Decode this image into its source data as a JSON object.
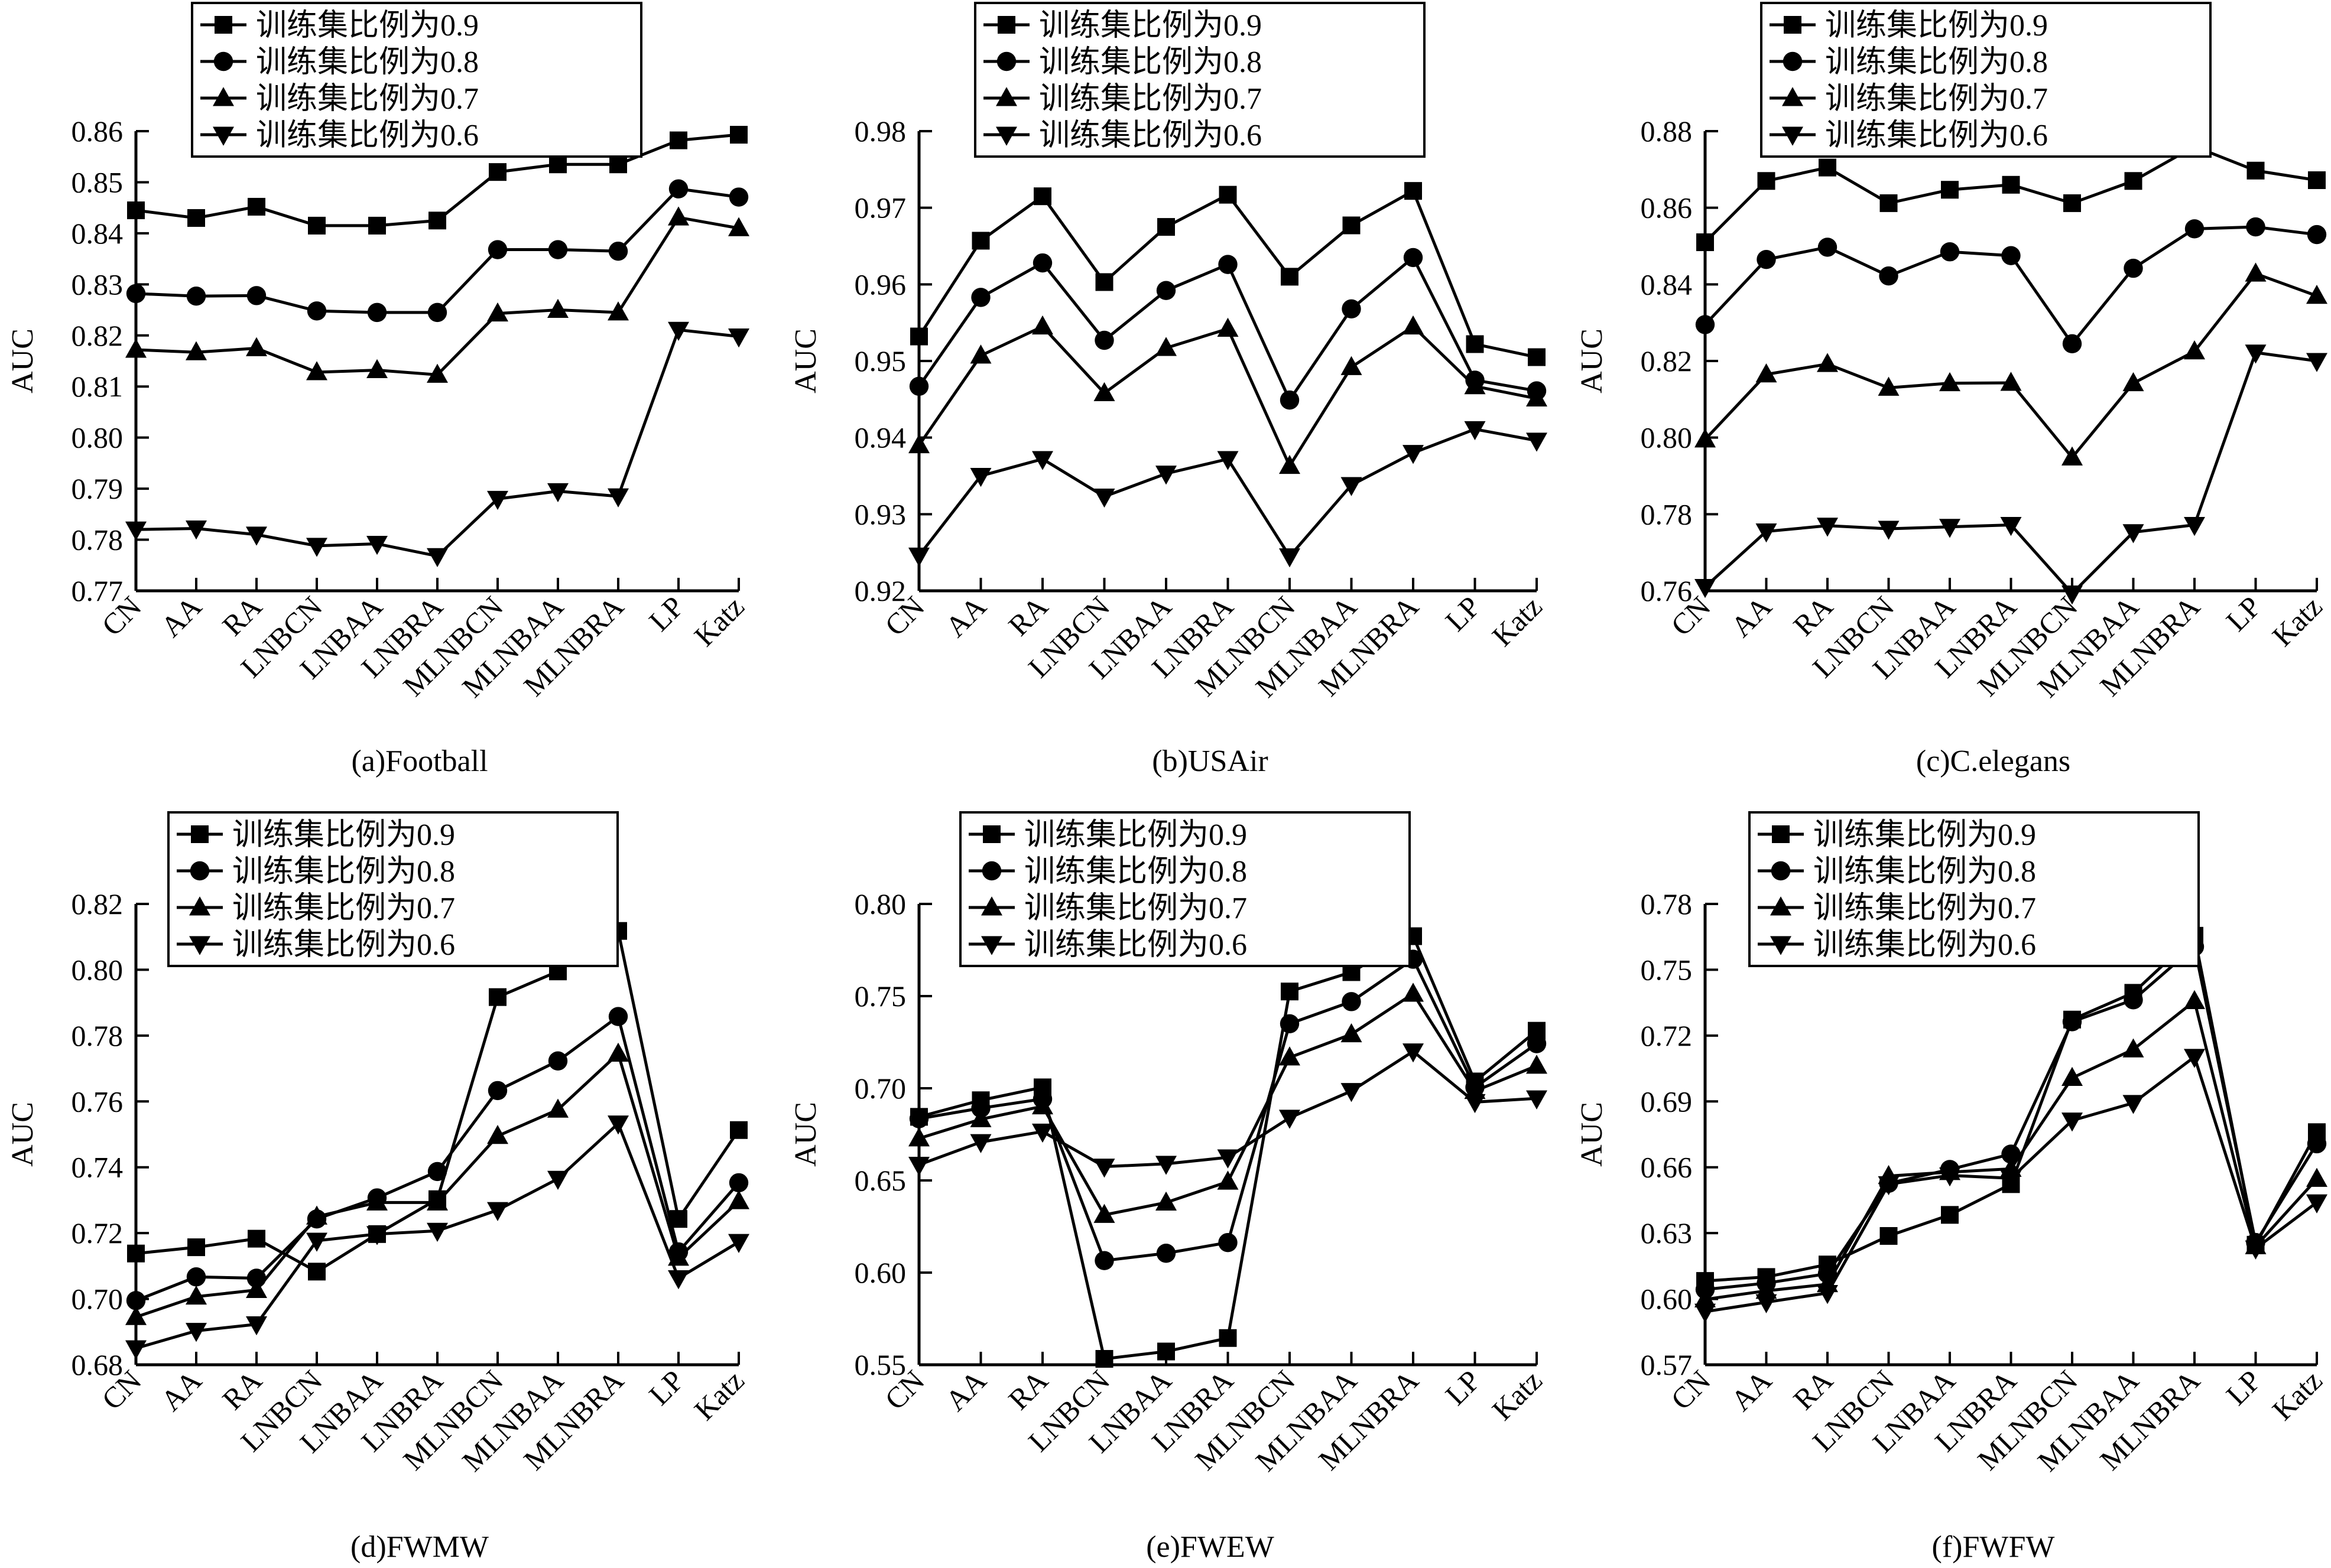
{
  "legend_labels": [
    "训练集比例为0.9",
    "训练集比例为0.8",
    "训练集比例为0.7",
    "训练集比例为0.6"
  ],
  "marker_shapes": [
    "square",
    "circle",
    "triangle-up",
    "triangle-down"
  ],
  "chart_data": [
    {
      "type": "line",
      "caption": "(a)Football",
      "ylabel": "AUC",
      "categories": [
        "CN",
        "AA",
        "RA",
        "LNBCN",
        "LNBAA",
        "LNBRA",
        "MLNBCN",
        "MLNBAA",
        "MLNBRA",
        "LP",
        "Katz"
      ],
      "ylim": [
        0.77,
        0.86
      ],
      "yticks": [
        "0.77",
        "0.78",
        "0.79",
        "0.80",
        "0.81",
        "0.82",
        "0.83",
        "0.84",
        "0.85",
        "0.86"
      ],
      "series": [
        {
          "name": "训练集比例为0.9",
          "values": [
            0.8445,
            0.843,
            0.8452,
            0.8415,
            0.8415,
            0.8425,
            0.852,
            0.8535,
            0.8535,
            0.8582,
            0.8593
          ]
        },
        {
          "name": "训练集比例为0.8",
          "values": [
            0.8282,
            0.8277,
            0.8278,
            0.8248,
            0.8245,
            0.8245,
            0.8368,
            0.8368,
            0.8365,
            0.8487,
            0.8471
          ]
        },
        {
          "name": "训练集比例为0.7",
          "values": [
            0.8172,
            0.8167,
            0.8175,
            0.8128,
            0.8132,
            0.8123,
            0.8243,
            0.825,
            0.8245,
            0.8431,
            0.841
          ]
        },
        {
          "name": "训练集比例为0.6",
          "values": [
            0.782,
            0.7822,
            0.781,
            0.7788,
            0.7792,
            0.7768,
            0.788,
            0.7895,
            0.7885,
            0.8211,
            0.8198
          ]
        }
      ]
    },
    {
      "type": "line",
      "caption": "(b)USAir",
      "ylabel": "AUC",
      "categories": [
        "CN",
        "AA",
        "RA",
        "LNBCN",
        "LNBAA",
        "LNBRA",
        "MLNBCN",
        "MLNBAA",
        "MLNBRA",
        "LP",
        "Katz"
      ],
      "ylim": [
        0.92,
        0.98
      ],
      "yticks": [
        "0.92",
        "0.93",
        "0.94",
        "0.95",
        "0.96",
        "0.97",
        "0.98"
      ],
      "series": [
        {
          "name": "训练集比例为0.9",
          "values": [
            0.9532,
            0.9657,
            0.9715,
            0.9603,
            0.9675,
            0.9717,
            0.961,
            0.9677,
            0.9722,
            0.9522,
            0.9505
          ]
        },
        {
          "name": "训练集比例为0.8",
          "values": [
            0.9467,
            0.9583,
            0.9628,
            0.9527,
            0.9592,
            0.9626,
            0.9449,
            0.9568,
            0.9635,
            0.9475,
            0.9461
          ]
        },
        {
          "name": "训练集比例为0.7",
          "values": [
            0.939,
            0.9507,
            0.9545,
            0.9458,
            0.9517,
            0.9542,
            0.9363,
            0.9492,
            0.9545,
            0.9467,
            0.9451
          ]
        },
        {
          "name": "训练集比例为0.6",
          "values": [
            0.9246,
            0.935,
            0.9372,
            0.9323,
            0.9353,
            0.9372,
            0.9245,
            0.9338,
            0.938,
            0.9411,
            0.9396
          ]
        }
      ]
    },
    {
      "type": "line",
      "caption": "(c)C.elegans",
      "ylabel": "AUC",
      "categories": [
        "CN",
        "AA",
        "RA",
        "LNBCN",
        "LNBAA",
        "LNBRA",
        "MLNBCN",
        "MLNBAA",
        "MLNBRA",
        "LP",
        "Katz"
      ],
      "ylim": [
        0.76,
        0.88
      ],
      "yticks": [
        "0.76",
        "0.78",
        "0.80",
        "0.82",
        "0.84",
        "0.86",
        "0.88"
      ],
      "series": [
        {
          "name": "训练集比例为0.9",
          "values": [
            0.851,
            0.867,
            0.8705,
            0.8612,
            0.8647,
            0.866,
            0.8612,
            0.867,
            0.876,
            0.8697,
            0.8672
          ]
        },
        {
          "name": "训练集比例为0.8",
          "values": [
            0.8295,
            0.8465,
            0.8497,
            0.8422,
            0.8485,
            0.8475,
            0.8245,
            0.8442,
            0.8545,
            0.855,
            0.853
          ]
        },
        {
          "name": "训练集比例为0.7",
          "values": [
            0.7995,
            0.8165,
            0.8192,
            0.813,
            0.8142,
            0.8143,
            0.7948,
            0.8142,
            0.8225,
            0.8428,
            0.837
          ]
        },
        {
          "name": "训练集比例为0.6",
          "values": [
            0.761,
            0.7755,
            0.777,
            0.7762,
            0.7767,
            0.7772,
            0.7593,
            0.7753,
            0.7772,
            0.8222,
            0.82
          ]
        }
      ]
    },
    {
      "type": "line",
      "caption": "(d)FWMW",
      "ylabel": "AUC",
      "categories": [
        "CN",
        "AA",
        "RA",
        "LNBCN",
        "LNBAA",
        "LNBRA",
        "MLNBCN",
        "MLNBAA",
        "MLNBRA",
        "LP",
        "Katz"
      ],
      "ylim": [
        0.68,
        0.82
      ],
      "yticks": [
        "0.68",
        "0.70",
        "0.72",
        "0.74",
        "0.76",
        "0.78",
        "0.80",
        "0.82"
      ],
      "series": [
        {
          "name": "训练集比例为0.9",
          "values": [
            0.7138,
            0.7157,
            0.7183,
            0.7083,
            0.7197,
            0.7303,
            0.7917,
            0.7995,
            0.8118,
            0.7243,
            0.7513
          ]
        },
        {
          "name": "训练集比例为0.8",
          "values": [
            0.6995,
            0.7067,
            0.7063,
            0.7243,
            0.7307,
            0.7387,
            0.7633,
            0.7723,
            0.7858,
            0.7143,
            0.7353
          ]
        },
        {
          "name": "训练集比例为0.7",
          "values": [
            0.6945,
            0.7007,
            0.7027,
            0.725,
            0.7293,
            0.7293,
            0.7495,
            0.7575,
            0.7745,
            0.7125,
            0.7297
          ]
        },
        {
          "name": "训练集比例为0.6",
          "values": [
            0.685,
            0.6903,
            0.6923,
            0.7177,
            0.7197,
            0.7207,
            0.727,
            0.7365,
            0.7533,
            0.7063,
            0.7173
          ]
        }
      ]
    },
    {
      "type": "line",
      "caption": "(e)FWEW",
      "ylabel": "AUC",
      "categories": [
        "CN",
        "AA",
        "RA",
        "LNBCN",
        "LNBAA",
        "LNBRA",
        "MLNBCN",
        "MLNBAA",
        "MLNBRA",
        "LP",
        "Katz"
      ],
      "ylim": [
        0.55,
        0.8
      ],
      "yticks": [
        "0.55",
        "0.60",
        "0.65",
        "0.70",
        "0.75",
        "0.80"
      ],
      "series": [
        {
          "name": "训练集比例为0.9",
          "values": [
            0.6845,
            0.6935,
            0.7005,
            0.5532,
            0.5572,
            0.5645,
            0.7525,
            0.763,
            0.7825,
            0.7037,
            0.7312
          ]
        },
        {
          "name": "训练集比例为0.8",
          "values": [
            0.6835,
            0.6892,
            0.6942,
            0.6065,
            0.6105,
            0.6163,
            0.735,
            0.747,
            0.77,
            0.7005,
            0.7242
          ]
        },
        {
          "name": "训练集比例为0.7",
          "values": [
            0.6728,
            0.6832,
            0.6902,
            0.6313,
            0.638,
            0.6493,
            0.7167,
            0.7293,
            0.7513,
            0.6985,
            0.7122
          ]
        },
        {
          "name": "训练集比例为0.6",
          "values": [
            0.6585,
            0.6708,
            0.6765,
            0.6575,
            0.659,
            0.6625,
            0.684,
            0.6985,
            0.72,
            0.6925,
            0.6945
          ]
        }
      ]
    },
    {
      "type": "line",
      "caption": "(f)FWFW",
      "ylabel": "AUC",
      "categories": [
        "CN",
        "AA",
        "RA",
        "LNBCN",
        "LNBAA",
        "LNBRA",
        "MLNBCN",
        "MLNBAA",
        "MLNBRA",
        "LP",
        "Katz"
      ],
      "ylim": [
        0.57,
        0.78
      ],
      "yticks": [
        "0.57",
        "0.60",
        "0.63",
        "0.66",
        "0.69",
        "0.72",
        "0.75",
        "0.78"
      ],
      "series": [
        {
          "name": "训练集比例为0.9",
          "values": [
            0.6082,
            0.61,
            0.6157,
            0.6287,
            0.6383,
            0.6523,
            0.7273,
            0.7395,
            0.7655,
            0.6247,
            0.676
          ]
        },
        {
          "name": "训练集比例为0.8",
          "values": [
            0.6043,
            0.6072,
            0.6115,
            0.6527,
            0.659,
            0.666,
            0.7263,
            0.7363,
            0.7605,
            0.6257,
            0.6707
          ]
        },
        {
          "name": "训练集比例为0.7",
          "values": [
            0.5998,
            0.6037,
            0.6067,
            0.656,
            0.6578,
            0.6593,
            0.7007,
            0.7137,
            0.7357,
            0.624,
            0.6547
          ]
        },
        {
          "name": "训练集比例为0.6",
          "values": [
            0.5942,
            0.5985,
            0.6027,
            0.6523,
            0.6563,
            0.655,
            0.6813,
            0.6893,
            0.7103,
            0.623,
            0.644
          ]
        }
      ]
    }
  ]
}
